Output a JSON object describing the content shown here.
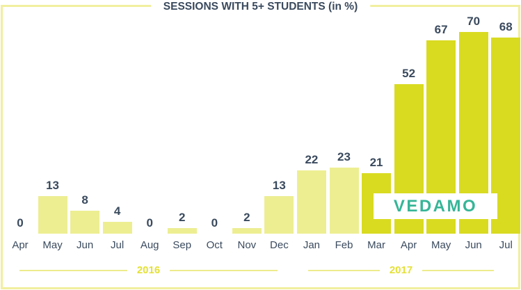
{
  "title": "SESSIONS WITH 5+ STUDENTS (in %)",
  "watermark": "VEDAMO",
  "colors": {
    "bar_light": "#EDEE92",
    "bar_dark": "#D9DB21",
    "label_text": "#3A4A5E",
    "frame": "#F1EF9E",
    "year_line": "#EDEB8C",
    "year_text": "#E4E136",
    "logo_teal": "#36B597"
  },
  "chart_data": {
    "type": "bar",
    "title": "SESSIONS WITH 5+ STUDENTS (in %)",
    "categories": [
      "Apr",
      "May",
      "Jun",
      "Jul",
      "Aug",
      "Sep",
      "Oct",
      "Nov",
      "Dec",
      "Jan",
      "Feb",
      "Mar",
      "Apr",
      "May",
      "Jun",
      "Jul"
    ],
    "values": [
      0,
      13,
      8,
      4,
      0,
      2,
      0,
      2,
      13,
      22,
      23,
      21,
      52,
      67,
      70,
      68
    ],
    "bar_styles": [
      "light",
      "light",
      "light",
      "light",
      "light",
      "light",
      "light",
      "light",
      "light",
      "light",
      "light",
      "dark",
      "dark",
      "dark",
      "dark",
      "dark"
    ],
    "ylim": [
      0,
      70
    ],
    "grid": false,
    "legend": false,
    "value_labels": "above-bars",
    "year_groups": [
      {
        "label": "2016",
        "start_index": 0,
        "end_index": 8
      },
      {
        "label": "2017",
        "start_index": 9,
        "end_index": 15
      }
    ]
  }
}
